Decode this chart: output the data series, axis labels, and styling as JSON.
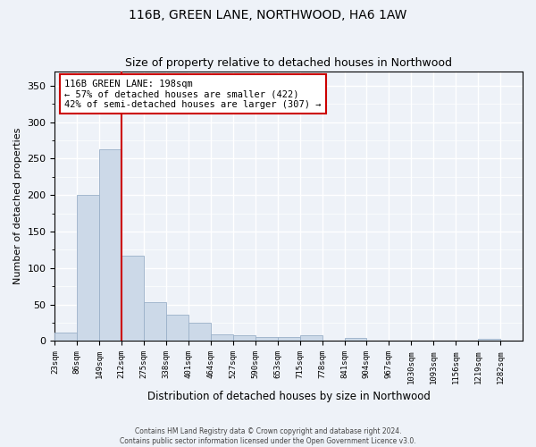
{
  "title": "116B, GREEN LANE, NORTHWOOD, HA6 1AW",
  "subtitle": "Size of property relative to detached houses in Northwood",
  "xlabel": "Distribution of detached houses by size in Northwood",
  "ylabel": "Number of detached properties",
  "bar_labels": [
    "23sqm",
    "86sqm",
    "149sqm",
    "212sqm",
    "275sqm",
    "338sqm",
    "401sqm",
    "464sqm",
    "527sqm",
    "590sqm",
    "653sqm",
    "715sqm",
    "778sqm",
    "841sqm",
    "904sqm",
    "967sqm",
    "1030sqm",
    "1093sqm",
    "1156sqm",
    "1219sqm",
    "1282sqm"
  ],
  "bar_values": [
    12,
    200,
    263,
    117,
    53,
    36,
    25,
    9,
    8,
    5,
    5,
    8,
    0,
    4,
    0,
    0,
    0,
    0,
    0,
    3,
    0
  ],
  "bar_color": "#ccd9e8",
  "bar_edgecolor": "#9ab0c8",
  "vline_color": "#cc0000",
  "ylim": [
    0,
    370
  ],
  "yticks": [
    0,
    50,
    100,
    150,
    200,
    250,
    300,
    350
  ],
  "annotation_text": "116B GREEN LANE: 198sqm\n← 57% of detached houses are smaller (422)\n42% of semi-detached houses are larger (307) →",
  "annotation_box_color": "#ffffff",
  "annotation_box_edgecolor": "#cc0000",
  "footer1": "Contains HM Land Registry data © Crown copyright and database right 2024.",
  "footer2": "Contains public sector information licensed under the Open Government Licence v3.0.",
  "bg_color": "#eef2f8",
  "grid_color": "#ffffff"
}
